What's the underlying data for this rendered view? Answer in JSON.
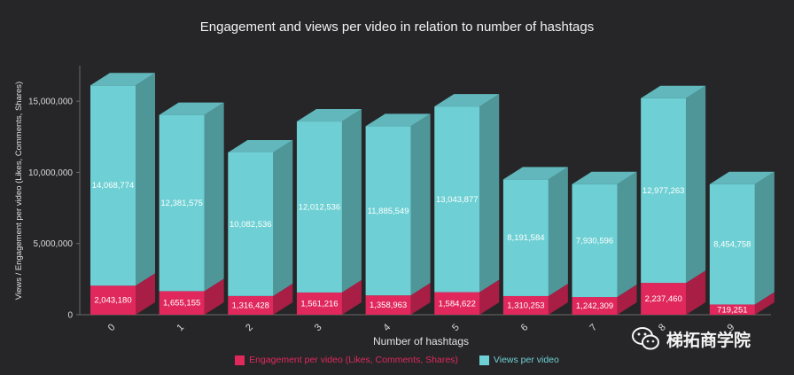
{
  "chart_data": {
    "type": "bar",
    "stacked": true,
    "title": "Engagement and views per video in relation to number of hashtags",
    "xlabel": "Number of hashtags",
    "ylabel": "Views / Engagement per video (Likes, Comments, Shares)",
    "categories": [
      "0",
      "1",
      "2",
      "3",
      "4",
      "5",
      "6",
      "7",
      "8",
      "9"
    ],
    "series": [
      {
        "name": "Engagement per video (Likes, Comments, Shares)",
        "color": "#e0285c",
        "values": [
          2043180,
          1655155,
          1316428,
          1561216,
          1358963,
          1584622,
          1310253,
          1242309,
          2237460,
          719251
        ],
        "labels": [
          "2,043,180",
          "1,655,155",
          "1,316,428",
          "1,561,216",
          "1,358,963",
          "1,584,622",
          "1,310,253",
          "1,242,309",
          "2,237,460",
          "719,251"
        ]
      },
      {
        "name": "Views per video",
        "color": "#6ed0d4",
        "values": [
          14068774,
          12381575,
          10082536,
          12012536,
          11885549,
          13043877,
          8191584,
          7930596,
          12977263,
          8454758
        ],
        "labels": [
          "14,068,774",
          "12,381,575",
          "10,082,536",
          "12,012,536",
          "11,885,549",
          "13,043,877",
          "8,191,584",
          "7,930,596",
          "12,977,263",
          "8,454,758"
        ]
      }
    ],
    "ylim": [
      0,
      17500000
    ],
    "yticks": [
      0,
      5000000,
      10000000,
      15000000
    ],
    "ytick_labels": [
      "0",
      "5,000,000",
      "10,000,000",
      "15,000,000"
    ],
    "legend_position": "bottom-center",
    "grid": false
  },
  "watermark": {
    "text": "梯拓商学院",
    "icon": "wechat-icon"
  }
}
